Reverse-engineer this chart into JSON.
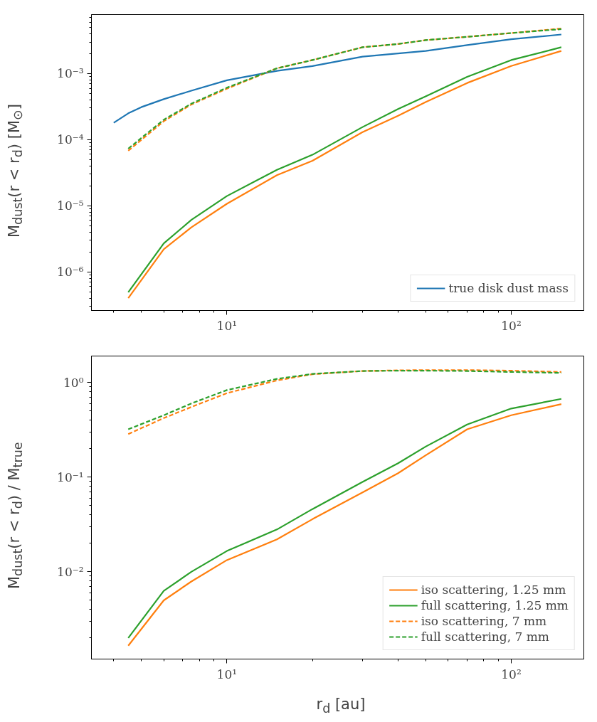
{
  "chart_data": [
    {
      "type": "line",
      "ylabel": "M$_{dust}$(r < r$_{d}$) [M$_{⊙}$]",
      "log": "xy",
      "legend": "bottom right",
      "grid": false,
      "xlim": [
        3.34,
        180
      ],
      "ylim": [
        2.6e-07,
        0.0078
      ],
      "xticks": [
        {
          "value": 4,
          "label": null
        },
        {
          "value": 5,
          "label": null
        },
        {
          "value": 6,
          "label": null
        },
        {
          "value": 7,
          "label": null
        },
        {
          "value": 8,
          "label": null
        },
        {
          "value": 9,
          "label": null
        },
        {
          "value": 10,
          "label": "10¹"
        },
        {
          "value": 20,
          "label": null
        },
        {
          "value": 30,
          "label": null
        },
        {
          "value": 40,
          "label": null
        },
        {
          "value": 50,
          "label": null
        },
        {
          "value": 60,
          "label": null
        },
        {
          "value": 70,
          "label": null
        },
        {
          "value": 80,
          "label": null
        },
        {
          "value": 90,
          "label": null
        },
        {
          "value": 100,
          "label": "10²"
        }
      ],
      "yticks": [
        {
          "value": 3e-07,
          "label": null
        },
        {
          "value": 4e-07,
          "label": null
        },
        {
          "value": 5e-07,
          "label": null
        },
        {
          "value": 6e-07,
          "label": null
        },
        {
          "value": 7e-07,
          "label": null
        },
        {
          "value": 8e-07,
          "label": null
        },
        {
          "value": 9e-07,
          "label": null
        },
        {
          "value": 1e-06,
          "label": "10⁻⁶"
        },
        {
          "value": 2e-06,
          "label": null
        },
        {
          "value": 3e-06,
          "label": null
        },
        {
          "value": 4e-06,
          "label": null
        },
        {
          "value": 5e-06,
          "label": null
        },
        {
          "value": 6e-06,
          "label": null
        },
        {
          "value": 7e-06,
          "label": null
        },
        {
          "value": 8e-06,
          "label": null
        },
        {
          "value": 9e-06,
          "label": null
        },
        {
          "value": 1e-05,
          "label": "10⁻⁵"
        },
        {
          "value": 2e-05,
          "label": null
        },
        {
          "value": 3e-05,
          "label": null
        },
        {
          "value": 4e-05,
          "label": null
        },
        {
          "value": 5e-05,
          "label": null
        },
        {
          "value": 6e-05,
          "label": null
        },
        {
          "value": 7e-05,
          "label": null
        },
        {
          "value": 8e-05,
          "label": null
        },
        {
          "value": 9e-05,
          "label": null
        },
        {
          "value": 0.0001,
          "label": "10⁻⁴"
        },
        {
          "value": 0.0002,
          "label": null
        },
        {
          "value": 0.0003,
          "label": null
        },
        {
          "value": 0.0004,
          "label": null
        },
        {
          "value": 0.0005,
          "label": null
        },
        {
          "value": 0.0006,
          "label": null
        },
        {
          "value": 0.0007,
          "label": null
        },
        {
          "value": 0.0008,
          "label": null
        },
        {
          "value": 0.0009,
          "label": null
        },
        {
          "value": 0.001,
          "label": "10⁻³"
        },
        {
          "value": 0.002,
          "label": null
        },
        {
          "value": 0.003,
          "label": null
        },
        {
          "value": 0.004,
          "label": null
        },
        {
          "value": 0.005,
          "label": null
        },
        {
          "value": 0.006,
          "label": null
        },
        {
          "value": 0.007,
          "label": null
        }
      ],
      "x": [
        4.5,
        6,
        7.5,
        10,
        15,
        20,
        30,
        40,
        50,
        70,
        100,
        150
      ],
      "series": [
        {
          "name": "true disk dust mass",
          "color": "#1f77b4",
          "line_style": "solid",
          "x": [
            4,
            4.5,
            5,
            6,
            7.5,
            10,
            15,
            20,
            30,
            50,
            70,
            100,
            150
          ],
          "values": [
            0.00018,
            0.00025,
            0.00031,
            0.00041,
            0.00055,
            0.00079,
            0.0011,
            0.0013,
            0.0018,
            0.0022,
            0.0027,
            0.0033,
            0.0039
          ]
        },
        {
          "color": "#ff7f0e",
          "line_style": "solid",
          "values": [
            4e-07,
            2.2e-06,
            4.7e-06,
            1.07e-05,
            2.9e-05,
            4.8e-05,
            0.00013,
            0.00023,
            0.00037,
            0.00072,
            0.0013,
            0.0022
          ]
        },
        {
          "color": "#2ca02c",
          "line_style": "solid",
          "values": [
            4.9e-07,
            2.7e-06,
            6.1e-06,
            1.4e-05,
            3.5e-05,
            5.9e-05,
            0.000155,
            0.00029,
            0.00045,
            0.00089,
            0.0016,
            0.0025
          ]
        },
        {
          "color": "#ff7f0e",
          "line_style": "dashed",
          "values": [
            6.8e-05,
            0.00019,
            0.00034,
            0.00059,
            0.0012,
            0.0016,
            0.0025,
            0.0028,
            0.0032,
            0.0036,
            0.0041,
            0.0048
          ]
        },
        {
          "color": "#2ca02c",
          "line_style": "dashed",
          "values": [
            7.3e-05,
            0.0002,
            0.00035,
            0.00061,
            0.0012,
            0.0016,
            0.0025,
            0.0028,
            0.0032,
            0.0036,
            0.0041,
            0.0047
          ]
        }
      ]
    },
    {
      "type": "line",
      "xlabel": "r$_{d}$ [au]",
      "ylabel": "M$_{dust}$(r < r$_{d}$) / M$_{true}$",
      "log": "xy",
      "legend": "bottom right",
      "grid": false,
      "xlim": [
        3.34,
        180
      ],
      "ylim": [
        0.0012,
        1.9
      ],
      "xticks": [
        {
          "value": 4,
          "label": null
        },
        {
          "value": 5,
          "label": null
        },
        {
          "value": 6,
          "label": null
        },
        {
          "value": 7,
          "label": null
        },
        {
          "value": 8,
          "label": null
        },
        {
          "value": 9,
          "label": null
        },
        {
          "value": 10,
          "label": "10¹"
        },
        {
          "value": 20,
          "label": null
        },
        {
          "value": 30,
          "label": null
        },
        {
          "value": 40,
          "label": null
        },
        {
          "value": 50,
          "label": null
        },
        {
          "value": 60,
          "label": null
        },
        {
          "value": 70,
          "label": null
        },
        {
          "value": 80,
          "label": null
        },
        {
          "value": 90,
          "label": null
        },
        {
          "value": 100,
          "label": "10²"
        }
      ],
      "yticks": [
        {
          "value": 0.002,
          "label": null
        },
        {
          "value": 0.003,
          "label": null
        },
        {
          "value": 0.004,
          "label": null
        },
        {
          "value": 0.005,
          "label": null
        },
        {
          "value": 0.006,
          "label": null
        },
        {
          "value": 0.007,
          "label": null
        },
        {
          "value": 0.008,
          "label": null
        },
        {
          "value": 0.009,
          "label": null
        },
        {
          "value": 0.01,
          "label": "10⁻²"
        },
        {
          "value": 0.02,
          "label": null
        },
        {
          "value": 0.03,
          "label": null
        },
        {
          "value": 0.04,
          "label": null
        },
        {
          "value": 0.05,
          "label": null
        },
        {
          "value": 0.06,
          "label": null
        },
        {
          "value": 0.07,
          "label": null
        },
        {
          "value": 0.08,
          "label": null
        },
        {
          "value": 0.09,
          "label": null
        },
        {
          "value": 0.1,
          "label": "10⁻¹"
        },
        {
          "value": 0.2,
          "label": null
        },
        {
          "value": 0.3,
          "label": null
        },
        {
          "value": 0.4,
          "label": null
        },
        {
          "value": 0.5,
          "label": null
        },
        {
          "value": 0.6,
          "label": null
        },
        {
          "value": 0.7,
          "label": null
        },
        {
          "value": 0.8,
          "label": null
        },
        {
          "value": 0.9,
          "label": null
        },
        {
          "value": 1,
          "label": "10⁰"
        }
      ],
      "x": [
        4.5,
        6,
        7.5,
        10,
        15,
        20,
        30,
        40,
        50,
        70,
        100,
        150
      ],
      "series": [
        {
          "name": "iso scattering, 1.25 mm",
          "color": "#ff7f0e",
          "line_style": "solid",
          "values": [
            0.00166,
            0.005,
            0.0079,
            0.0133,
            0.022,
            0.036,
            0.069,
            0.11,
            0.17,
            0.32,
            0.45,
            0.59
          ]
        },
        {
          "name": "full scattering, 1.25 mm",
          "color": "#2ca02c",
          "line_style": "solid",
          "values": [
            0.002,
            0.0063,
            0.01,
            0.0166,
            0.028,
            0.046,
            0.089,
            0.14,
            0.21,
            0.36,
            0.53,
            0.67
          ]
        },
        {
          "name": "iso scattering, 7 mm",
          "color": "#ff7f0e",
          "line_style": "dashed",
          "values": [
            0.285,
            0.42,
            0.55,
            0.77,
            1.05,
            1.22,
            1.32,
            1.34,
            1.35,
            1.35,
            1.33,
            1.29
          ]
        },
        {
          "name": "full scattering, 7 mm",
          "color": "#2ca02c",
          "line_style": "dashed",
          "values": [
            0.32,
            0.45,
            0.6,
            0.83,
            1.09,
            1.23,
            1.32,
            1.33,
            1.33,
            1.32,
            1.29,
            1.26
          ]
        }
      ]
    }
  ]
}
